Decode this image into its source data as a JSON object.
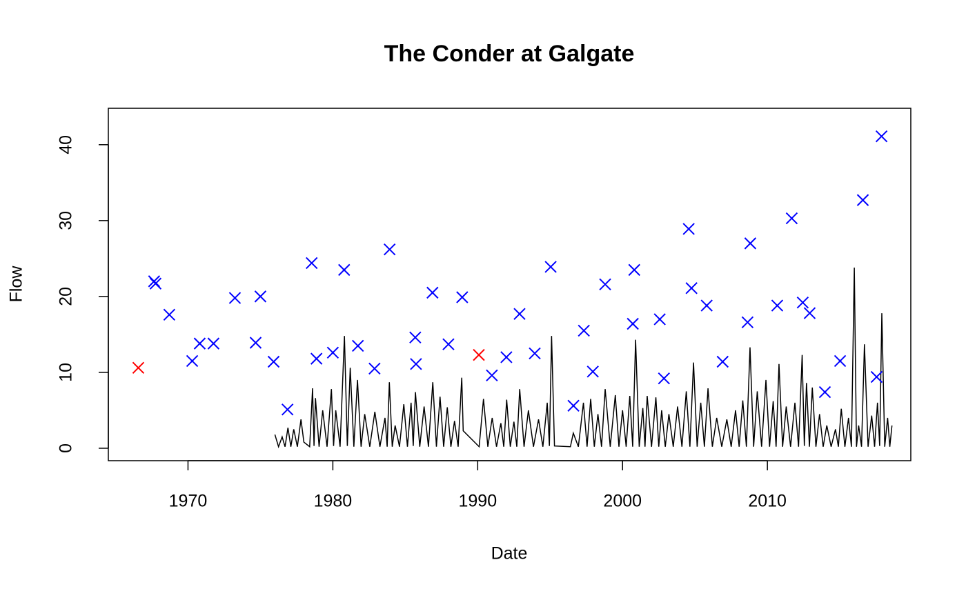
{
  "chart_data": {
    "type": "line",
    "title": "The Conder at Galgate",
    "x_label": "Date",
    "y_label": "Flow",
    "xlim": [
      1964.5,
      2019.9
    ],
    "ylim": [
      -1.64,
      44.8
    ],
    "xticks": [
      1970,
      1980,
      1990,
      2000,
      2010
    ],
    "yticks": [
      0,
      10,
      20,
      30,
      40
    ],
    "series": [
      {
        "type": "line",
        "color": "#000000",
        "x": [
          1976.0,
          1976.25,
          1976.5,
          1976.7,
          1976.9,
          1977.1,
          1977.3,
          1977.55,
          1977.8,
          1978.0,
          1978.4,
          1978.6,
          1978.7,
          1978.8,
          1979.05,
          1979.3,
          1979.6,
          1979.9,
          1980.05,
          1980.2,
          1980.5,
          1980.8,
          1981.0,
          1981.2,
          1981.45,
          1981.7,
          1981.95,
          1982.2,
          1982.55,
          1982.9,
          1983.25,
          1983.6,
          1983.75,
          1983.9,
          1984.1,
          1984.3,
          1984.6,
          1984.9,
          1985.15,
          1985.4,
          1985.55,
          1985.7,
          1986.0,
          1986.3,
          1986.6,
          1986.9,
          1987.15,
          1987.4,
          1987.65,
          1987.9,
          1988.15,
          1988.4,
          1988.65,
          1988.9,
          1989.0,
          1990.1,
          1990.4,
          1990.7,
          1991.0,
          1991.3,
          1991.6,
          1991.8,
          1992.0,
          1992.25,
          1992.5,
          1992.7,
          1992.9,
          1993.2,
          1993.5,
          1993.85,
          1994.2,
          1994.5,
          1994.8,
          1994.95,
          1995.1,
          1995.3,
          1996.4,
          1996.6,
          1996.95,
          1997.3,
          1997.55,
          1997.8,
          1998.05,
          1998.3,
          1998.55,
          1998.8,
          1999.15,
          1999.5,
          1999.75,
          2000.0,
          2000.25,
          2000.5,
          2000.7,
          2000.9,
          2001.15,
          2001.4,
          2001.55,
          2001.7,
          2002.0,
          2002.3,
          2002.5,
          2002.7,
          2002.95,
          2003.2,
          2003.5,
          2003.8,
          2004.1,
          2004.4,
          2004.65,
          2004.9,
          2005.15,
          2005.4,
          2005.65,
          2005.9,
          2006.2,
          2006.5,
          2006.85,
          2007.2,
          2007.5,
          2007.8,
          2008.05,
          2008.3,
          2008.55,
          2008.8,
          2009.05,
          2009.3,
          2009.6,
          2009.9,
          2010.15,
          2010.4,
          2010.6,
          2010.8,
          2011.05,
          2011.3,
          2011.6,
          2011.9,
          2012.15,
          2012.4,
          2012.55,
          2012.7,
          2012.9,
          2013.1,
          2013.35,
          2013.6,
          2013.85,
          2014.1,
          2014.4,
          2014.7,
          2014.9,
          2015.1,
          2015.35,
          2015.6,
          2015.8,
          2016.0,
          2016.15,
          2016.3,
          2016.5,
          2016.7,
          2016.95,
          2017.2,
          2017.4,
          2017.6,
          2017.75,
          2017.9,
          2018.1,
          2018.3,
          2018.45,
          2018.6
        ],
        "values": [
          1.8,
          0.2,
          1.5,
          0.2,
          2.7,
          0.2,
          2.5,
          0.2,
          3.8,
          0.8,
          0.2,
          7.9,
          0.3,
          6.6,
          0.2,
          5.0,
          0.2,
          7.8,
          0.3,
          5.0,
          0.2,
          14.8,
          0.3,
          10.6,
          0.2,
          9.0,
          0.2,
          4.5,
          0.2,
          4.8,
          0.2,
          4.0,
          0.2,
          8.7,
          0.2,
          3.0,
          0.2,
          5.8,
          0.2,
          6.0,
          0.3,
          7.4,
          0.2,
          5.5,
          0.2,
          8.7,
          0.2,
          6.8,
          0.2,
          5.4,
          0.2,
          3.6,
          0.2,
          9.3,
          2.3,
          0.2,
          6.5,
          0.2,
          4.0,
          0.2,
          3.3,
          0.2,
          6.4,
          0.2,
          3.5,
          0.2,
          7.8,
          0.2,
          5.0,
          0.2,
          3.8,
          0.2,
          6.0,
          0.3,
          14.8,
          0.3,
          0.2,
          2.0,
          0.2,
          6.0,
          0.2,
          6.5,
          0.2,
          4.5,
          0.2,
          7.8,
          0.2,
          7.0,
          0.2,
          5.0,
          0.2,
          6.9,
          0.2,
          14.3,
          0.2,
          5.3,
          0.2,
          6.9,
          0.2,
          6.7,
          0.2,
          5.0,
          0.2,
          4.5,
          0.2,
          5.5,
          0.2,
          7.5,
          0.2,
          11.3,
          0.2,
          6.0,
          0.2,
          7.9,
          0.2,
          4.0,
          0.2,
          3.8,
          0.2,
          5.0,
          0.2,
          6.3,
          0.2,
          13.3,
          0.2,
          7.5,
          0.2,
          9.0,
          0.2,
          6.2,
          0.2,
          11.1,
          0.2,
          5.5,
          0.2,
          6.0,
          0.2,
          12.3,
          0.3,
          8.6,
          0.2,
          8.0,
          0.2,
          4.5,
          0.2,
          3.0,
          0.2,
          2.5,
          0.2,
          5.2,
          0.2,
          4.0,
          0.2,
          23.8,
          0.2,
          3.0,
          0.2,
          13.7,
          0.2,
          4.3,
          0.2,
          6.0,
          0.3,
          17.8,
          0.2,
          4.0,
          0.2,
          3.0
        ]
      },
      {
        "type": "scatter",
        "marker": "x",
        "color": "#0000ff",
        "x": [
          1967.66,
          1967.76,
          1968.71,
          1970.29,
          1970.81,
          1971.76,
          1973.24,
          1974.67,
          1975.0,
          1975.91,
          1976.87,
          1978.54,
          1978.87,
          1980.0,
          1980.78,
          1981.73,
          1982.88,
          1983.92,
          1985.69,
          1985.74,
          1986.88,
          1987.98,
          1988.93,
          1990.98,
          1991.98,
          1992.89,
          1993.94,
          1995.04,
          1996.61,
          1997.33,
          1997.95,
          1998.8,
          2000.71,
          2000.81,
          2002.57,
          2002.86,
          2004.57,
          2004.76,
          2005.81,
          2006.91,
          2008.63,
          2008.82,
          2010.68,
          2011.68,
          2012.44,
          2012.92,
          2013.97,
          2015.02,
          2016.59,
          2017.54,
          2017.88
        ],
        "values": [
          22.0,
          21.7,
          17.6,
          11.5,
          13.8,
          13.8,
          19.8,
          13.9,
          20.0,
          11.4,
          5.1,
          24.4,
          11.8,
          12.6,
          23.5,
          13.5,
          10.5,
          26.2,
          14.6,
          11.1,
          20.5,
          13.7,
          19.9,
          9.6,
          12.0,
          17.7,
          12.5,
          23.9,
          5.6,
          15.5,
          10.1,
          21.6,
          16.4,
          23.5,
          17.0,
          9.2,
          28.9,
          21.1,
          18.8,
          11.4,
          16.6,
          27.0,
          18.8,
          30.3,
          19.2,
          17.8,
          7.4,
          11.5,
          32.7,
          9.4,
          41.1
        ]
      },
      {
        "type": "scatter",
        "marker": "x",
        "color": "#ff0000",
        "x": [
          1966.57,
          1990.08
        ],
        "values": [
          10.6,
          12.3
        ]
      }
    ]
  }
}
